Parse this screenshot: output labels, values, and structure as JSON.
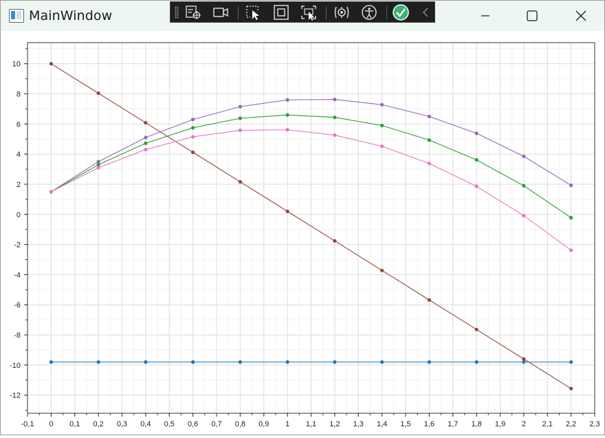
{
  "window": {
    "title": "MainWindow"
  },
  "icons": {
    "app": "window-app-icon",
    "toolbar": [
      "select-element-icon",
      "record-video-icon",
      "pointer-select-icon",
      "layout-adorner-icon",
      "track-focus-icon",
      "hot-reload-icon",
      "accessibility-icon",
      "binding-check-icon",
      "collapse-chevron-icon"
    ],
    "controls": [
      "minimize-icon",
      "maximize-icon",
      "close-icon"
    ]
  },
  "colors": {
    "blue": "#1f77b4",
    "brown": "#8c4a3a",
    "purple": "#9467bd",
    "green": "#2ca02c",
    "pink": "#e377c2",
    "check": "#3cb371"
  },
  "chart_data": {
    "type": "line",
    "title": "",
    "xlabel": "",
    "ylabel": "",
    "xlim": [
      -0.1,
      2.3
    ],
    "ylim": [
      -13.2,
      11.4
    ],
    "x_ticks": [
      "-0,1",
      "0",
      "0,1",
      "0,2",
      "0,3",
      "0,4",
      "0,5",
      "0,6",
      "0,7",
      "0,8",
      "0,9",
      "1",
      "1,1",
      "1,2",
      "1,3",
      "1,4",
      "1,5",
      "1,6",
      "1,7",
      "1,8",
      "1,9",
      "2",
      "2,1",
      "2,2",
      "2,3"
    ],
    "y_ticks": [
      "10",
      "8",
      "6",
      "4",
      "2",
      "0",
      "-2",
      "-4",
      "-6",
      "-8",
      "-10",
      "-12"
    ],
    "grid": true,
    "legend": "none",
    "x": [
      0,
      0.2,
      0.4,
      0.6,
      0.8,
      1.0,
      1.2,
      1.4,
      1.6,
      1.8,
      2.0,
      2.2
    ],
    "series": [
      {
        "color": "#1f77b4",
        "values": [
          -9.8,
          -9.8,
          -9.8,
          -9.8,
          -9.8,
          -9.8,
          -9.8,
          -9.8,
          -9.8,
          -9.8,
          -9.8,
          -9.8
        ]
      },
      {
        "color": "#8c4a3a",
        "values": [
          10.0,
          8.04,
          6.08,
          4.12,
          2.16,
          0.2,
          -1.76,
          -3.72,
          -5.68,
          -7.64,
          -9.6,
          -11.56
        ]
      },
      {
        "color": "#9467bd",
        "values": [
          1.5,
          3.5,
          5.1,
          6.3,
          7.15,
          7.6,
          7.63,
          7.28,
          6.5,
          5.38,
          3.85,
          1.93
        ]
      },
      {
        "color": "#2ca02c",
        "values": [
          1.5,
          3.3,
          4.72,
          5.75,
          6.38,
          6.6,
          6.44,
          5.9,
          4.93,
          3.62,
          1.9,
          -0.22
        ]
      },
      {
        "color": "#e377c2",
        "values": [
          1.5,
          3.1,
          4.3,
          5.15,
          5.58,
          5.62,
          5.26,
          4.52,
          3.38,
          1.86,
          -0.08,
          -2.38
        ]
      }
    ]
  }
}
